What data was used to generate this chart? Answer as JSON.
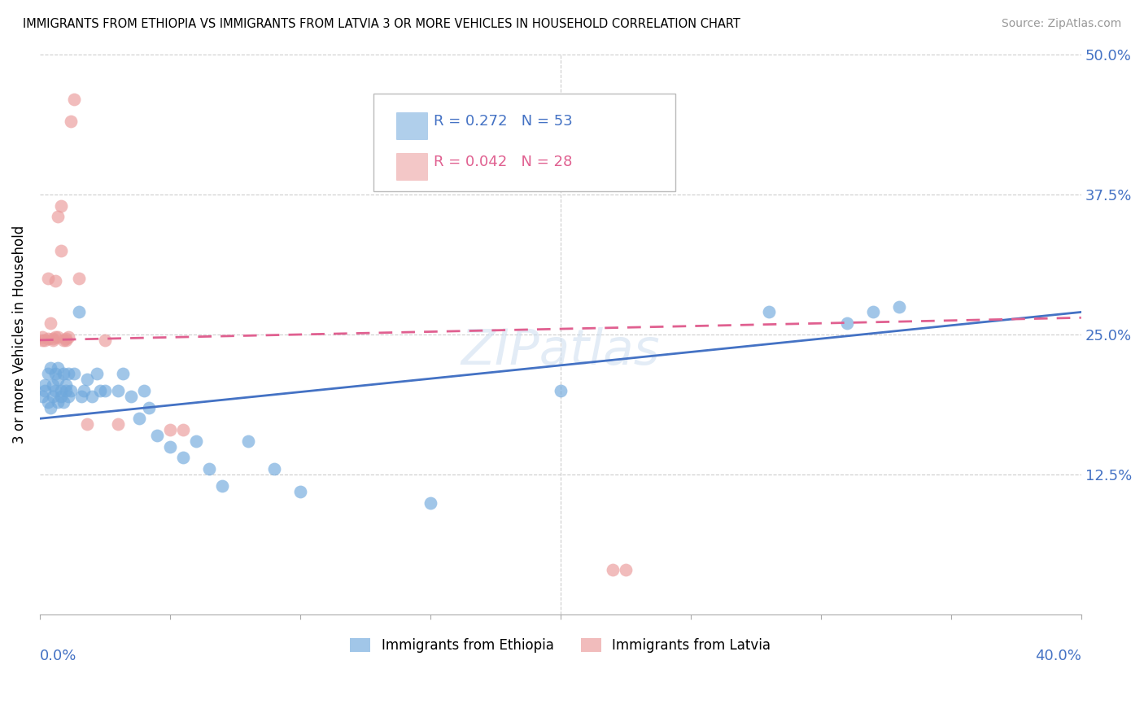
{
  "title": "IMMIGRANTS FROM ETHIOPIA VS IMMIGRANTS FROM LATVIA 3 OR MORE VEHICLES IN HOUSEHOLD CORRELATION CHART",
  "source": "Source: ZipAtlas.com",
  "ylabel": "3 or more Vehicles in Household",
  "xlim": [
    0.0,
    0.4
  ],
  "ylim": [
    0.0,
    0.5
  ],
  "ethiopia_color": "#6fa8dc",
  "latvia_color": "#ea9999",
  "ethiopia_line_color": "#4472c4",
  "latvia_line_color": "#e06090",
  "ethiopia_R": 0.272,
  "ethiopia_N": 53,
  "latvia_R": 0.042,
  "latvia_N": 28,
  "watermark": "ZIPatlas",
  "eth_x": [
    0.001,
    0.002,
    0.002,
    0.003,
    0.003,
    0.004,
    0.004,
    0.005,
    0.005,
    0.006,
    0.006,
    0.007,
    0.007,
    0.007,
    0.008,
    0.008,
    0.009,
    0.009,
    0.01,
    0.01,
    0.011,
    0.011,
    0.012,
    0.013,
    0.015,
    0.016,
    0.017,
    0.018,
    0.02,
    0.022,
    0.023,
    0.025,
    0.03,
    0.032,
    0.035,
    0.038,
    0.04,
    0.042,
    0.045,
    0.05,
    0.055,
    0.06,
    0.065,
    0.07,
    0.08,
    0.09,
    0.1,
    0.15,
    0.2,
    0.28,
    0.31,
    0.32,
    0.33
  ],
  "eth_y": [
    0.195,
    0.2,
    0.205,
    0.19,
    0.215,
    0.185,
    0.22,
    0.195,
    0.205,
    0.2,
    0.215,
    0.19,
    0.21,
    0.22,
    0.195,
    0.2,
    0.215,
    0.19,
    0.205,
    0.2,
    0.195,
    0.215,
    0.2,
    0.215,
    0.27,
    0.195,
    0.2,
    0.21,
    0.195,
    0.215,
    0.2,
    0.2,
    0.2,
    0.215,
    0.195,
    0.175,
    0.2,
    0.185,
    0.16,
    0.15,
    0.14,
    0.155,
    0.13,
    0.115,
    0.155,
    0.13,
    0.11,
    0.1,
    0.2,
    0.27,
    0.26,
    0.27,
    0.275
  ],
  "lat_x": [
    0.001,
    0.001,
    0.002,
    0.003,
    0.003,
    0.004,
    0.005,
    0.005,
    0.006,
    0.006,
    0.007,
    0.007,
    0.008,
    0.008,
    0.009,
    0.01,
    0.01,
    0.011,
    0.012,
    0.013,
    0.015,
    0.018,
    0.025,
    0.03,
    0.05,
    0.055,
    0.22,
    0.225
  ],
  "lat_y": [
    0.245,
    0.248,
    0.245,
    0.3,
    0.246,
    0.26,
    0.246,
    0.245,
    0.248,
    0.298,
    0.248,
    0.355,
    0.365,
    0.325,
    0.245,
    0.245,
    0.246,
    0.248,
    0.44,
    0.46,
    0.3,
    0.17,
    0.245,
    0.17,
    0.165,
    0.165,
    0.04,
    0.04
  ]
}
